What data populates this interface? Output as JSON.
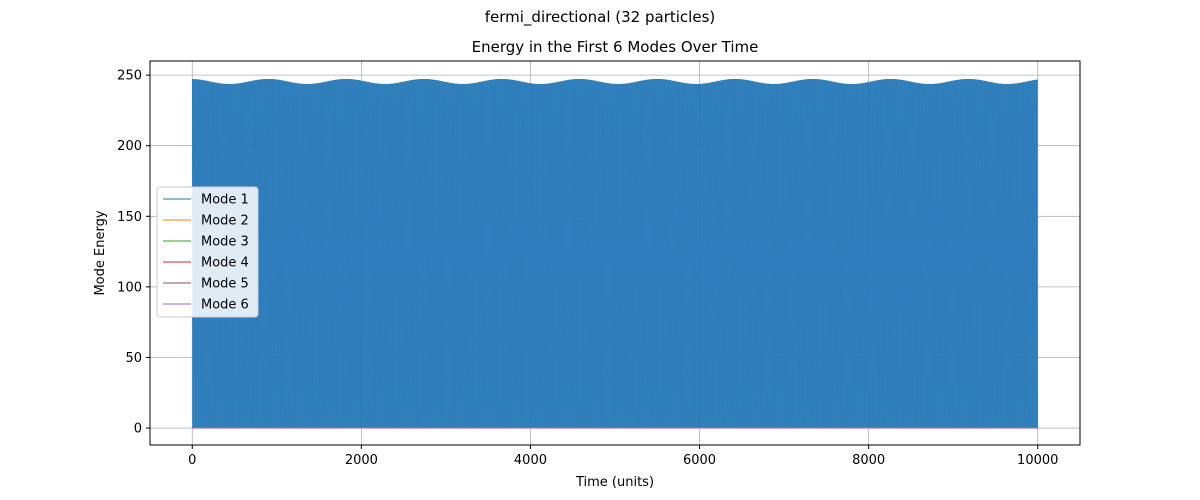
{
  "chart_data": {
    "type": "line",
    "suptitle": "fermi_directional (32 particles)",
    "title": "Energy in the First 6 Modes Over Time",
    "xlabel": "Time (units)",
    "ylabel": "Mode Energy",
    "xlim": [
      -500,
      10500
    ],
    "ylim": [
      -12,
      260
    ],
    "xticks": [
      0,
      2000,
      4000,
      6000,
      8000,
      10000
    ],
    "xtick_labels": [
      "0",
      "2000",
      "4000",
      "6000",
      "8000",
      "10000"
    ],
    "yticks": [
      0,
      50,
      100,
      150,
      200,
      250
    ],
    "ytick_labels": [
      "0",
      "50",
      "100",
      "150",
      "200",
      "250"
    ],
    "grid": true,
    "legend_position": "center-left",
    "series": [
      {
        "name": "Mode 1",
        "color": "#1f77b4",
        "pattern": "rapid oscillation between 0 and an upper envelope",
        "t_start": 0,
        "t_end": 10000,
        "envelope_max_mean": 245.5,
        "envelope_max_amplitude": 1.8,
        "envelope_period": 920,
        "min": 0,
        "final_value": 90
      },
      {
        "name": "Mode 2",
        "color": "#ff7f0e",
        "values_approx": 0.3,
        "t_start": 0,
        "t_end": 10000
      },
      {
        "name": "Mode 3",
        "color": "#2ca02c",
        "values_approx": 0.2,
        "t_start": 0,
        "t_end": 10000
      },
      {
        "name": "Mode 4",
        "color": "#d62728",
        "values_approx": 0.1,
        "t_start": 0,
        "t_end": 10000
      },
      {
        "name": "Mode 5",
        "color": "#8c564b",
        "values_approx": 0.1,
        "t_start": 0,
        "t_end": 10000
      },
      {
        "name": "Mode 6",
        "color": "#9467bd",
        "values_approx": 0.1,
        "t_start": 0,
        "t_end": 10000
      }
    ]
  }
}
